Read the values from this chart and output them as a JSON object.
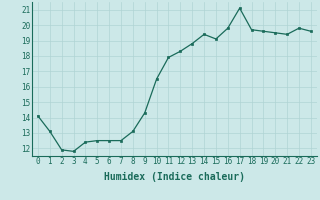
{
  "x": [
    0,
    1,
    2,
    3,
    4,
    5,
    6,
    7,
    8,
    9,
    10,
    11,
    12,
    13,
    14,
    15,
    16,
    17,
    18,
    19,
    20,
    21,
    22,
    23
  ],
  "y": [
    14.1,
    13.1,
    11.9,
    11.8,
    12.4,
    12.5,
    12.5,
    12.5,
    13.1,
    14.3,
    16.5,
    17.9,
    18.3,
    18.8,
    19.4,
    19.1,
    19.8,
    21.1,
    19.7,
    19.6,
    19.5,
    19.4,
    19.8,
    19.6
  ],
  "xlabel": "Humidex (Indice chaleur)",
  "ylim": [
    11.5,
    21.5
  ],
  "xlim": [
    -0.5,
    23.5
  ],
  "yticks": [
    12,
    13,
    14,
    15,
    16,
    17,
    18,
    19,
    20,
    21
  ],
  "xticks": [
    0,
    1,
    2,
    3,
    4,
    5,
    6,
    7,
    8,
    9,
    10,
    11,
    12,
    13,
    14,
    15,
    16,
    17,
    18,
    19,
    20,
    21,
    22,
    23
  ],
  "line_color": "#1a6b5a",
  "marker_color": "#1a6b5a",
  "bg_color": "#cce8e8",
  "grid_color": "#b0d4d4",
  "font_color": "#1a6b5a",
  "tick_fontsize": 5.5,
  "xlabel_fontsize": 7.0
}
